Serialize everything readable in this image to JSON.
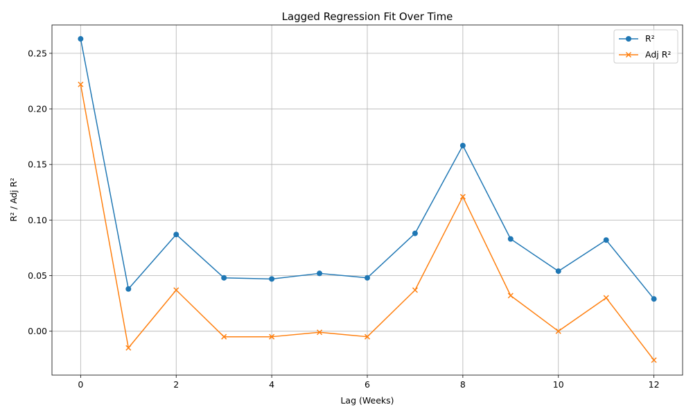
{
  "chart_data": {
    "type": "line",
    "title": "Lagged Regression Fit Over Time",
    "xlabel": "Lag (Weeks)",
    "ylabel": "R² / Adj R²",
    "x": [
      0,
      1,
      2,
      3,
      4,
      5,
      6,
      7,
      8,
      9,
      10,
      11,
      12
    ],
    "xlim": [
      -0.6,
      12.6
    ],
    "ylim": [
      -0.0395,
      0.2755
    ],
    "xticks": [
      0,
      2,
      4,
      6,
      8,
      10,
      12
    ],
    "xtick_labels": [
      "0",
      "2",
      "4",
      "6",
      "8",
      "10",
      "12"
    ],
    "yticks": [
      0.0,
      0.05,
      0.1,
      0.15,
      0.2,
      0.25
    ],
    "ytick_labels": [
      "0.00",
      "0.05",
      "0.10",
      "0.15",
      "0.20",
      "0.25"
    ],
    "grid": true,
    "legend_position": "top-right",
    "series": [
      {
        "name": "R²",
        "color": "#1f77b4",
        "marker": "circle",
        "values": [
          0.263,
          0.038,
          0.087,
          0.048,
          0.047,
          0.052,
          0.048,
          0.088,
          0.167,
          0.083,
          0.054,
          0.082,
          0.029
        ]
      },
      {
        "name": "Adj R²",
        "color": "#ff7f0e",
        "marker": "x",
        "values": [
          0.222,
          -0.015,
          0.037,
          -0.005,
          -0.005,
          -0.001,
          -0.005,
          0.037,
          0.121,
          0.032,
          0.0,
          0.03,
          -0.026
        ]
      }
    ]
  }
}
